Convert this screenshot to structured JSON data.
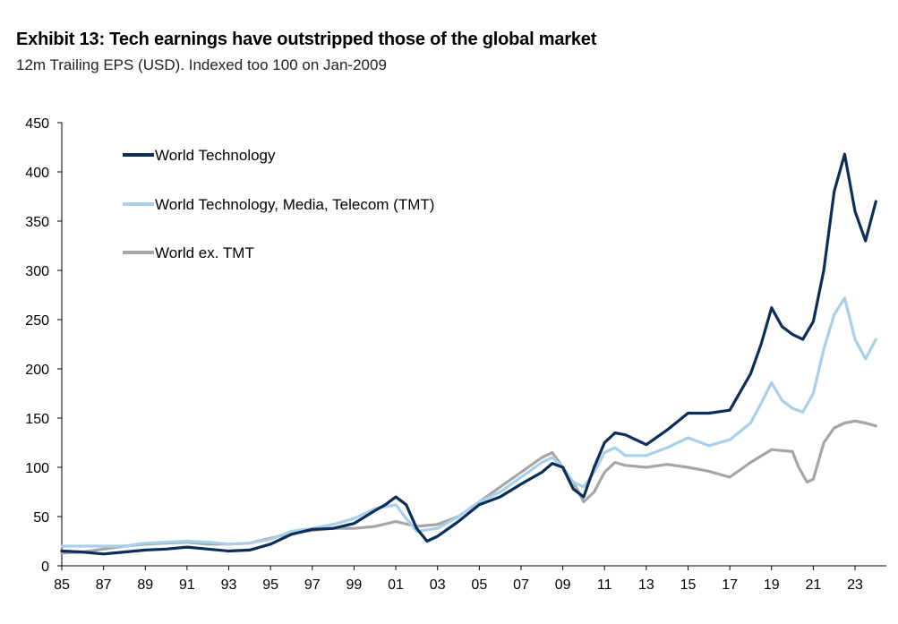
{
  "chart_data": {
    "type": "line",
    "title": "Exhibit 13: Tech earnings have outstripped those of the global market",
    "subtitle": "12m Trailing EPS (USD). Indexed too 100 on Jan-2009",
    "xlabel": "",
    "ylabel": "",
    "ylim": [
      0,
      450
    ],
    "yticks": [
      0,
      50,
      100,
      150,
      200,
      250,
      300,
      350,
      400,
      450
    ],
    "xlim": [
      1985,
      2024.5
    ],
    "xtick_values": [
      1985,
      1987,
      1989,
      1991,
      1993,
      1995,
      1997,
      1999,
      2001,
      2003,
      2005,
      2007,
      2009,
      2011,
      2013,
      2015,
      2017,
      2019,
      2021,
      2023
    ],
    "xtick_labels": [
      "85",
      "87",
      "89",
      "91",
      "93",
      "95",
      "97",
      "99",
      "01",
      "03",
      "05",
      "07",
      "09",
      "11",
      "13",
      "15",
      "17",
      "19",
      "21",
      "23"
    ],
    "grid": false,
    "legend_position": "top-left",
    "series": [
      {
        "name": "World Technology",
        "color": "#0b2e59",
        "x": [
          1985,
          1986,
          1987,
          1988,
          1989,
          1990,
          1991,
          1992,
          1993,
          1994,
          1995,
          1996,
          1997,
          1998,
          1999,
          2000,
          2000.5,
          2001,
          2001.5,
          2002,
          2002.5,
          2003,
          2004,
          2005,
          2006,
          2007,
          2008,
          2008.5,
          2009,
          2009.5,
          2010,
          2010.5,
          2011,
          2011.5,
          2012,
          2013,
          2014,
          2015,
          2016,
          2017,
          2018,
          2018.5,
          2019,
          2019.5,
          2020,
          2020.5,
          2021,
          2021.5,
          2022,
          2022.5,
          2023,
          2023.5,
          2024
        ],
        "values": [
          15,
          14,
          12,
          14,
          16,
          17,
          19,
          17,
          15,
          16,
          22,
          32,
          37,
          38,
          43,
          56,
          62,
          70,
          62,
          38,
          25,
          30,
          45,
          62,
          70,
          83,
          95,
          104,
          100,
          78,
          70,
          100,
          125,
          135,
          133,
          123,
          138,
          155,
          155,
          158,
          195,
          225,
          262,
          243,
          235,
          230,
          248,
          300,
          380,
          418,
          360,
          330,
          370
        ]
      },
      {
        "name": "World Technology, Media, Telecom (TMT)",
        "color": "#a9d0ea",
        "x": [
          1985,
          1986,
          1987,
          1988,
          1989,
          1990,
          1991,
          1992,
          1993,
          1994,
          1995,
          1996,
          1997,
          1998,
          1999,
          2000,
          2001,
          2001.5,
          2002,
          2003,
          2004,
          2005,
          2006,
          2007,
          2008,
          2008.5,
          2009,
          2009.5,
          2010,
          2010.5,
          2011,
          2011.5,
          2012,
          2013,
          2014,
          2015,
          2016,
          2017,
          2018,
          2018.5,
          2019,
          2019.5,
          2020,
          2020.5,
          2021,
          2021.5,
          2022,
          2022.5,
          2023,
          2023.5,
          2024
        ],
        "values": [
          20,
          20,
          20,
          20,
          23,
          24,
          25,
          24,
          22,
          23,
          27,
          35,
          38,
          42,
          48,
          58,
          62,
          48,
          35,
          38,
          50,
          65,
          75,
          90,
          105,
          110,
          100,
          85,
          80,
          95,
          115,
          120,
          112,
          112,
          120,
          130,
          122,
          128,
          145,
          165,
          186,
          168,
          160,
          156,
          175,
          220,
          255,
          272,
          230,
          210,
          230
        ]
      },
      {
        "name": "World ex. TMT",
        "color": "#a6a6a6",
        "x": [
          1985,
          1986,
          1987,
          1988,
          1989,
          1990,
          1991,
          1992,
          1993,
          1994,
          1995,
          1996,
          1997,
          1998,
          1999,
          2000,
          2001,
          2002,
          2003,
          2004,
          2005,
          2006,
          2007,
          2008,
          2008.5,
          2009,
          2009.5,
          2010,
          2010.5,
          2011,
          2011.5,
          2012,
          2013,
          2014,
          2015,
          2016,
          2017,
          2018,
          2019,
          2020,
          2020.3,
          2020.7,
          2021,
          2021.5,
          2022,
          2022.5,
          2023,
          2023.5,
          2024
        ],
        "values": [
          13,
          14,
          17,
          20,
          22,
          23,
          24,
          22,
          22,
          23,
          28,
          33,
          36,
          38,
          38,
          40,
          45,
          40,
          42,
          50,
          65,
          80,
          95,
          110,
          115,
          100,
          85,
          65,
          75,
          95,
          105,
          102,
          100,
          103,
          100,
          96,
          90,
          105,
          118,
          116,
          100,
          85,
          88,
          125,
          140,
          145,
          147,
          145,
          142
        ]
      }
    ]
  }
}
